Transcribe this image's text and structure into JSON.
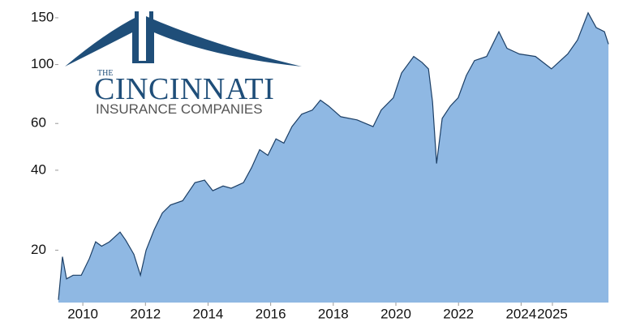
{
  "chart_data": {
    "type": "area",
    "logo": {
      "line1": "THE",
      "line2": "CINCINNATI",
      "line3": "INSURANCE COMPANIES"
    },
    "x": [
      2009.22,
      2009.35,
      2009.48,
      2009.69,
      2009.95,
      2010.21,
      2010.41,
      2010.6,
      2010.85,
      2011.19,
      2011.37,
      2011.63,
      2011.84,
      2012.02,
      2012.28,
      2012.54,
      2012.8,
      2013.19,
      2013.58,
      2013.89,
      2014.15,
      2014.48,
      2014.74,
      2015.13,
      2015.39,
      2015.65,
      2015.91,
      2016.17,
      2016.42,
      2016.68,
      2016.99,
      2017.33,
      2017.59,
      2017.85,
      2018.24,
      2018.76,
      2019.27,
      2019.53,
      2019.92,
      2020.18,
      2020.57,
      2020.83,
      2021.04,
      2021.17,
      2021.3,
      2021.48,
      2021.74,
      2021.99,
      2022.25,
      2022.51,
      2022.9,
      2023.29,
      2023.55,
      2023.94,
      2024.46,
      2024.97,
      2025.49,
      2025.8,
      2026.14,
      2026.4,
      2026.66,
      2026.79
    ],
    "values": [
      13.0,
      18.9,
      15.6,
      16.1,
      16.1,
      18.6,
      21.5,
      20.7,
      21.5,
      23.4,
      21.8,
      19.3,
      16.1,
      20.0,
      23.9,
      27.6,
      29.6,
      30.7,
      35.9,
      36.7,
      33.5,
      34.9,
      34.2,
      35.9,
      40.9,
      47.8,
      45.5,
      52.5,
      50.6,
      58.4,
      65.0,
      67.4,
      73.4,
      69.8,
      63.6,
      61.9,
      58.4,
      67.4,
      75.0,
      92.9,
      107.3,
      102.0,
      96.3,
      72.4,
      42.4,
      62.7,
      69.8,
      75.0,
      91.0,
      103.5,
      107.3,
      132.9,
      115.2,
      109.6,
      107.3,
      96.3,
      109.6,
      123.7,
      156.6,
      137.7,
      132.9,
      119.4
    ],
    "line_color": "#1c3f66",
    "fill_color": "#8fb8e3",
    "log_scale": true,
    "ylim": [
      12.7,
      175
    ],
    "yticks": [
      20,
      40,
      60,
      100,
      150
    ],
    "xlim": [
      2009.22,
      2026.84
    ],
    "xticks": [
      2010,
      2012,
      2014,
      2016,
      2018,
      2020,
      2022,
      2024,
      2025
    ]
  }
}
